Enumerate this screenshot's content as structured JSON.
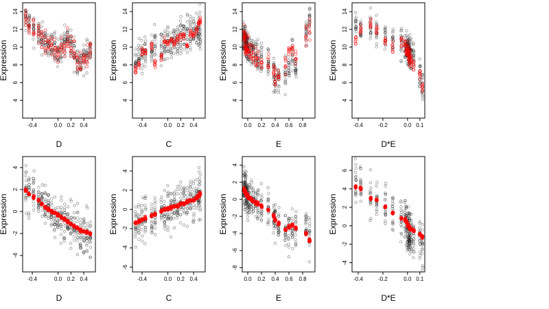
{
  "chart_data": [
    {
      "type": "scatter",
      "xlabel": "D",
      "ylabel": "Expression",
      "xlim": [
        -0.55,
        0.58
      ],
      "ylim": [
        2,
        15
      ],
      "xticks": [
        "-0.4",
        "0.0",
        "0.2",
        "0.4"
      ],
      "xtickvals": [
        -0.4,
        0.0,
        0.2,
        0.4
      ],
      "yticks": [
        "4",
        "6",
        "8",
        "10",
        "12",
        "14"
      ],
      "ytickvals": [
        4,
        6,
        8,
        10,
        12,
        14
      ],
      "xvals": [
        -0.5,
        -0.45,
        -0.38,
        -0.3,
        -0.25,
        -0.2,
        -0.15,
        -0.1,
        -0.05,
        0.0,
        0.05,
        0.1,
        0.15,
        0.2,
        0.25,
        0.3,
        0.35,
        0.4,
        0.45,
        0.5
      ],
      "black_center": [
        13.2,
        12.6,
        12.0,
        11.5,
        11.0,
        10.6,
        10.2,
        10.0,
        9.8,
        9.6,
        9.9,
        10.5,
        10.8,
        10.4,
        9.5,
        8.6,
        8.2,
        8.6,
        9.2,
        9.8
      ],
      "black_spread": 3.2,
      "red_center": [
        13.0,
        12.5,
        12.0,
        11.4,
        11.0,
        10.5,
        10.2,
        10.0,
        9.7,
        9.5,
        9.8,
        10.4,
        10.6,
        10.2,
        9.3,
        8.5,
        8.0,
        8.4,
        9.0,
        9.6
      ],
      "red_spread": 2.6,
      "red_style": "hollow"
    },
    {
      "type": "scatter",
      "xlabel": "C",
      "ylabel": "Expression",
      "xlim": [
        -0.55,
        0.58
      ],
      "ylim": [
        2,
        15
      ],
      "xticks": [
        "-0.4",
        "0.0",
        "0.2",
        "0.4"
      ],
      "xtickvals": [
        -0.4,
        0.0,
        0.2,
        0.4
      ],
      "yticks": [
        "4",
        "6",
        "8",
        "10",
        "12",
        "14"
      ],
      "ytickvals": [
        4,
        6,
        8,
        10,
        12,
        14
      ],
      "xvals": [
        -0.5,
        -0.45,
        -0.4,
        -0.35,
        -0.25,
        -0.2,
        -0.1,
        -0.05,
        0.0,
        0.05,
        0.1,
        0.15,
        0.2,
        0.25,
        0.3,
        0.35,
        0.4,
        0.45,
        0.48,
        0.5
      ],
      "black_center": [
        8.0,
        8.5,
        9.0,
        9.3,
        9.6,
        9.8,
        10.0,
        10.2,
        10.4,
        10.6,
        10.8,
        11.0,
        11.1,
        11.2,
        11.4,
        11.5,
        11.6,
        11.8,
        12.0,
        12.2
      ],
      "black_spread": 4.0,
      "red_center": [
        7.4,
        8.0,
        9.4,
        9.6,
        10.0,
        8.2,
        9.0,
        10.6,
        10.4,
        10.8,
        10.6,
        11.0,
        11.2,
        11.3,
        10.2,
        11.6,
        11.4,
        11.8,
        12.6,
        13.0
      ],
      "red_spread": 0.8,
      "red_style": "hollow"
    },
    {
      "type": "scatter",
      "xlabel": "E",
      "ylabel": "Expression",
      "xlim": [
        -0.08,
        0.98
      ],
      "ylim": [
        2,
        15
      ],
      "xticks": [
        "0.0",
        "0.2",
        "0.4",
        "0.6",
        "0.8"
      ],
      "xtickvals": [
        0.0,
        0.2,
        0.4,
        0.6,
        0.8
      ],
      "yticks": [
        "4",
        "6",
        "8",
        "10",
        "12",
        "14"
      ],
      "ytickvals": [
        4,
        6,
        8,
        10,
        12,
        14
      ],
      "xvals": [
        -0.06,
        -0.05,
        -0.04,
        -0.03,
        -0.02,
        -0.01,
        0.0,
        0.02,
        0.05,
        0.08,
        0.12,
        0.15,
        0.2,
        0.3,
        0.38,
        0.4,
        0.45,
        0.55,
        0.6,
        0.65,
        0.7,
        0.85,
        0.9
      ],
      "black_center": [
        11.0,
        11.0,
        10.8,
        10.6,
        10.4,
        10.2,
        10.0,
        9.8,
        9.6,
        9.4,
        9.2,
        9.0,
        8.8,
        8.5,
        7.0,
        6.0,
        6.5,
        7.0,
        8.0,
        9.0,
        7.5,
        12.0,
        13.0
      ],
      "black_spread": 3.4,
      "red_center": [
        11.5,
        11.2,
        10.8,
        10.5,
        10.2,
        10.0,
        9.8,
        9.6,
        9.4,
        9.2,
        9.0,
        8.8,
        8.6,
        8.4,
        7.0,
        6.5,
        6.8,
        8.0,
        9.5,
        10.0,
        9.0,
        11.5,
        12.0
      ],
      "red_spread": 2.2,
      "red_style": "hollow"
    },
    {
      "type": "scatter",
      "xlabel": "D*E",
      "ylabel": "Expression",
      "xlim": [
        -0.45,
        0.14
      ],
      "ylim": [
        2,
        15
      ],
      "xticks": [
        "-0.4",
        "-0.2",
        "0.0",
        "0.1"
      ],
      "xtickvals": [
        -0.4,
        -0.2,
        0.0,
        0.1
      ],
      "yticks": [
        "4",
        "6",
        "8",
        "10",
        "12",
        "14"
      ],
      "ytickvals": [
        4,
        6,
        8,
        10,
        12,
        14
      ],
      "xvals": [
        -0.42,
        -0.38,
        -0.3,
        -0.25,
        -0.18,
        -0.12,
        -0.05,
        -0.02,
        -0.01,
        0.0,
        0.005,
        0.01,
        0.015,
        0.02,
        0.03,
        0.05,
        0.1,
        0.12
      ],
      "black_center": [
        12.5,
        12.0,
        11.8,
        11.5,
        11.0,
        10.5,
        10.5,
        10.2,
        10.0,
        9.8,
        9.6,
        9.5,
        9.4,
        9.3,
        9.2,
        9.0,
        7.0,
        5.5
      ],
      "black_spread": 3.4,
      "red_center": [
        11.0,
        12.0,
        12.5,
        12.0,
        10.5,
        10.0,
        10.5,
        10.0,
        9.8,
        9.6,
        9.4,
        9.2,
        9.0,
        8.8,
        8.6,
        8.0,
        6.8,
        5.5
      ],
      "red_spread": 1.8,
      "red_style": "hollow"
    },
    {
      "type": "scatter",
      "xlabel": "D",
      "ylabel": "Expression",
      "xlim": [
        -0.55,
        0.58
      ],
      "ylim": [
        -5.5,
        5
      ],
      "xticks": [
        "-0.4",
        "0.0",
        "0.2",
        "0.4"
      ],
      "xtickvals": [
        -0.4,
        0.0,
        0.2,
        0.4
      ],
      "yticks": [
        "-4",
        "-2",
        "0",
        "2",
        "4"
      ],
      "ytickvals": [
        -4,
        -2,
        0,
        2,
        4
      ],
      "xvals": [
        -0.5,
        -0.45,
        -0.38,
        -0.3,
        -0.25,
        -0.2,
        -0.15,
        -0.1,
        -0.05,
        0.0,
        0.05,
        0.1,
        0.15,
        0.2,
        0.25,
        0.3,
        0.35,
        0.4,
        0.45,
        0.5
      ],
      "black_center": [
        2.0,
        1.8,
        1.5,
        1.2,
        0.9,
        0.6,
        0.3,
        0.0,
        -0.2,
        -0.4,
        -0.6,
        -0.8,
        -1.0,
        -1.2,
        -1.4,
        -1.6,
        -1.8,
        -2.0,
        -2.2,
        -2.4
      ],
      "black_spread": 3.8,
      "red_center": [
        1.9,
        1.6,
        1.3,
        1.0,
        0.7,
        0.4,
        0.2,
        0.0,
        -0.1,
        -0.3,
        -0.5,
        -0.7,
        -0.9,
        -1.1,
        -1.3,
        -1.5,
        -1.7,
        -1.8,
        -1.9,
        -2.0
      ],
      "red_spread": 0.25,
      "red_style": "solid"
    },
    {
      "type": "scatter",
      "xlabel": "C",
      "ylabel": "Expression",
      "xlim": [
        -0.55,
        0.58
      ],
      "ylim": [
        -6.5,
        5.5
      ],
      "xticks": [
        "-0.4",
        "0.0",
        "0.2",
        "0.4"
      ],
      "xtickvals": [
        -0.4,
        0.0,
        0.2,
        0.4
      ],
      "yticks": [
        "-6",
        "-4",
        "-2",
        "0",
        "2",
        "4"
      ],
      "ytickvals": [
        -6,
        -4,
        -2,
        0,
        2,
        4
      ],
      "xvals": [
        -0.5,
        -0.45,
        -0.4,
        -0.35,
        -0.25,
        -0.2,
        -0.1,
        -0.05,
        0.0,
        0.05,
        0.1,
        0.15,
        0.2,
        0.25,
        0.3,
        0.35,
        0.4,
        0.45,
        0.48,
        0.5
      ],
      "black_center": [
        -1.5,
        -1.3,
        -1.1,
        -0.9,
        -0.7,
        -0.5,
        -0.3,
        -0.1,
        0.0,
        0.1,
        0.3,
        0.4,
        0.5,
        0.6,
        0.8,
        0.9,
        1.0,
        1.1,
        1.3,
        1.5
      ],
      "black_spread": 4.5,
      "red_center": [
        -1.4,
        -1.2,
        -1.1,
        -0.9,
        -0.6,
        -0.5,
        -0.2,
        0.0,
        0.1,
        0.2,
        0.3,
        0.4,
        0.5,
        0.6,
        0.8,
        0.9,
        1.0,
        1.2,
        1.4,
        1.6
      ],
      "red_spread": 0.3,
      "red_style": "solid"
    },
    {
      "type": "scatter",
      "xlabel": "E",
      "ylabel": "Expression",
      "xlim": [
        -0.08,
        0.98
      ],
      "ylim": [
        -8.5,
        5
      ],
      "xticks": [
        "0.0",
        "0.2",
        "0.4",
        "0.6",
        "0.8"
      ],
      "xtickvals": [
        0.0,
        0.2,
        0.4,
        0.6,
        0.8
      ],
      "yticks": [
        "-8",
        "-6",
        "-4",
        "-2",
        "0",
        "2",
        "4"
      ],
      "ytickvals": [
        -8,
        -6,
        -4,
        -2,
        0,
        2,
        4
      ],
      "xvals": [
        -0.06,
        -0.05,
        -0.04,
        -0.03,
        -0.02,
        -0.01,
        0.0,
        0.02,
        0.05,
        0.08,
        0.12,
        0.15,
        0.2,
        0.3,
        0.38,
        0.4,
        0.45,
        0.55,
        0.6,
        0.65,
        0.7,
        0.85,
        0.9
      ],
      "black_center": [
        1.5,
        1.4,
        1.2,
        1.0,
        0.8,
        0.6,
        0.4,
        0.2,
        0.0,
        -0.2,
        -0.4,
        -0.6,
        -0.8,
        -1.2,
        -2.2,
        -2.5,
        -3.0,
        -3.5,
        -4.0,
        -3.5,
        -3.0,
        -3.5,
        -4.5
      ],
      "black_spread": 4.5,
      "red_center": [
        1.2,
        1.0,
        0.9,
        0.8,
        0.6,
        0.5,
        0.3,
        0.2,
        0.0,
        -0.2,
        -0.4,
        -0.5,
        -0.8,
        -1.2,
        -2.0,
        -2.4,
        -2.8,
        -3.5,
        -3.2,
        -3.0,
        -3.4,
        -4.0,
        -4.8
      ],
      "red_spread": 0.4,
      "red_style": "solid"
    },
    {
      "type": "scatter",
      "xlabel": "D*E",
      "ylabel": "Expression",
      "xlim": [
        -0.45,
        0.14
      ],
      "ylim": [
        -5,
        7.5
      ],
      "xticks": [
        "-0.4",
        "-0.2",
        "0.0",
        "0.1"
      ],
      "xtickvals": [
        -0.4,
        -0.2,
        0.0,
        0.1
      ],
      "yticks": [
        "-4",
        "-2",
        "0",
        "2",
        "4",
        "6"
      ],
      "ytickvals": [
        -4,
        -2,
        0,
        2,
        4,
        6
      ],
      "xvals": [
        -0.42,
        -0.38,
        -0.3,
        -0.25,
        -0.18,
        -0.12,
        -0.05,
        -0.02,
        -0.01,
        0.0,
        0.005,
        0.01,
        0.015,
        0.02,
        0.03,
        0.05,
        0.1,
        0.12
      ],
      "black_center": [
        5.0,
        4.5,
        3.5,
        3.0,
        2.0,
        1.5,
        0.8,
        0.5,
        0.3,
        0.0,
        -0.2,
        -0.4,
        -0.6,
        -0.8,
        -1.0,
        -1.2,
        -1.5,
        -1.8
      ],
      "black_spread": 4.5,
      "red_center": [
        4.2,
        4.0,
        3.0,
        2.8,
        2.0,
        1.4,
        0.8,
        0.6,
        0.4,
        0.2,
        0.0,
        -0.1,
        -0.2,
        -0.3,
        -0.4,
        -0.5,
        -1.0,
        -1.2
      ],
      "red_spread": 0.3,
      "red_style": "solid"
    }
  ]
}
